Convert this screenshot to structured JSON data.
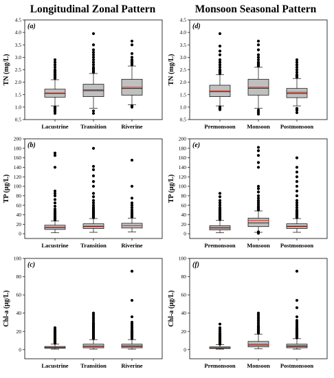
{
  "columns": {
    "left_title": "Longitudinal Zonal Pattern",
    "right_title": "Monsoon Seasonal Pattern"
  },
  "chart_data": [
    {
      "type": "box",
      "panel_label": "(a)",
      "ylabel": "TN (mg/L)",
      "ylim": [
        0.5,
        4.5
      ],
      "yticks": [
        "0.5",
        "1.0",
        "1.5",
        "2.0",
        "2.5",
        "3.0",
        "3.5",
        "4.0",
        "4.5"
      ],
      "categories": [
        "Lacustrine",
        "Transition",
        "Riverine"
      ],
      "boxes": [
        {
          "whisker_low": 1.05,
          "q1": 1.4,
          "median": 1.55,
          "mean": 1.57,
          "q3": 1.72,
          "whisker_high": 2.1,
          "outliers": [
            0.75,
            0.82,
            0.88,
            0.95,
            1.0,
            2.15,
            2.2,
            2.25,
            2.3,
            2.35,
            2.4,
            2.45,
            2.5,
            2.6,
            2.7,
            2.8,
            2.9
          ]
        },
        {
          "whisker_low": 0.95,
          "q1": 1.42,
          "median": 1.66,
          "mean": 1.7,
          "q3": 1.92,
          "whisker_high": 2.35,
          "outliers": [
            0.75,
            0.85,
            2.4,
            2.45,
            2.5,
            2.55,
            2.6,
            2.7,
            2.8,
            2.9,
            3.0,
            3.1,
            3.2,
            3.3,
            3.5,
            3.95
          ]
        },
        {
          "whisker_low": 1.1,
          "q1": 1.48,
          "median": 1.75,
          "mean": 1.8,
          "q3": 2.12,
          "whisker_high": 2.65,
          "outliers": [
            1.0,
            1.05,
            2.7,
            2.75,
            2.8,
            2.85,
            2.9,
            3.0,
            3.15,
            3.5,
            3.65
          ]
        }
      ]
    },
    {
      "type": "box",
      "panel_label": "(b)",
      "ylabel": "TP (μg/L)",
      "ylim": [
        -10,
        200
      ],
      "yticks": [
        "0",
        "20",
        "40",
        "60",
        "80",
        "100",
        "120",
        "140",
        "160",
        "180",
        "200"
      ],
      "categories": [
        "Lacustrine",
        "Transition",
        "Riverine"
      ],
      "boxes": [
        {
          "whisker_low": 2,
          "q1": 9,
          "median": 13,
          "mean": 14,
          "q3": 18,
          "whisker_high": 27,
          "outliers": [
            29,
            31,
            33,
            35,
            37,
            40,
            42,
            45,
            48,
            52,
            58,
            65,
            72,
            80,
            85,
            90,
            140,
            165,
            170
          ]
        },
        {
          "whisker_low": 3,
          "q1": 11,
          "median": 15,
          "mean": 16,
          "q3": 21,
          "whisker_high": 32,
          "outliers": [
            34,
            36,
            38,
            40,
            42,
            44,
            46,
            48,
            50,
            53,
            56,
            60,
            65,
            70,
            78,
            85,
            100,
            110,
            122,
            135,
            142,
            180
          ]
        },
        {
          "whisker_low": 4,
          "q1": 12,
          "median": 17,
          "mean": 17,
          "q3": 22,
          "whisker_high": 33,
          "outliers": [
            35,
            37,
            40,
            43,
            46,
            50,
            55,
            60,
            65,
            75,
            100,
            155
          ]
        }
      ]
    },
    {
      "type": "box",
      "panel_label": "(c)",
      "ylabel": "Chl-a (μg/L)",
      "ylim": [
        -10,
        100
      ],
      "yticks": [
        "0",
        "20",
        "40",
        "60",
        "80",
        "100"
      ],
      "categories": [
        "Lacustrine",
        "Transition",
        "Riverine"
      ],
      "boxes": [
        {
          "whisker_low": 0.5,
          "q1": 1.5,
          "median": 2.2,
          "mean": 2.5,
          "q3": 3.5,
          "whisker_high": 6,
          "outliers": [
            7,
            8,
            9,
            10,
            11,
            12,
            13,
            14,
            15,
            16,
            17,
            18,
            19,
            20,
            21,
            22,
            24
          ]
        },
        {
          "whisker_low": 0.5,
          "q1": 2,
          "median": 3.5,
          "mean": 4,
          "q3": 6,
          "whisker_high": 11,
          "outliers": [
            12,
            13,
            14,
            15,
            16,
            17,
            18,
            19,
            20,
            21,
            22,
            23,
            24,
            25,
            26,
            27,
            28,
            29,
            30,
            32,
            34,
            36,
            38,
            40
          ]
        },
        {
          "whisker_low": 0.5,
          "q1": 2,
          "median": 3.5,
          "mean": 4.2,
          "q3": 6,
          "whisker_high": 11,
          "outliers": [
            12,
            13,
            14,
            15,
            16,
            17,
            18,
            19,
            20,
            21,
            22,
            24,
            26,
            28,
            30,
            36,
            54,
            86
          ]
        }
      ]
    },
    {
      "type": "box",
      "panel_label": "(d)",
      "ylabel": "TN (mg/L)",
      "ylim": [
        0.5,
        4.5
      ],
      "yticks": [
        "0.5",
        "1.0",
        "1.5",
        "2.0",
        "2.5",
        "3.0",
        "3.5",
        "4.0",
        "4.5"
      ],
      "categories": [
        "Premonsoon",
        "Monsoon",
        "Postmonsoon"
      ],
      "boxes": [
        {
          "whisker_low": 1.05,
          "q1": 1.42,
          "median": 1.62,
          "mean": 1.66,
          "q3": 1.88,
          "whisker_high": 2.3,
          "outliers": [
            0.9,
            0.95,
            1.0,
            2.35,
            2.4,
            2.45,
            2.5,
            2.6,
            2.7,
            2.8,
            2.9,
            3.1,
            3.25,
            3.45,
            3.95
          ]
        },
        {
          "whisker_low": 0.95,
          "q1": 1.48,
          "median": 1.76,
          "mean": 1.8,
          "q3": 2.12,
          "whisker_high": 2.6,
          "outliers": [
            0.72,
            0.8,
            0.88,
            2.65,
            2.7,
            2.75,
            2.8,
            2.9,
            3.0,
            3.1,
            3.3,
            3.5,
            3.65
          ]
        },
        {
          "whisker_low": 1.05,
          "q1": 1.38,
          "median": 1.55,
          "mean": 1.6,
          "q3": 1.75,
          "whisker_high": 2.15,
          "outliers": [
            0.78,
            0.88,
            0.95,
            2.2,
            2.25,
            2.3,
            2.4,
            2.5,
            2.6,
            2.7,
            2.8,
            2.9
          ]
        }
      ]
    },
    {
      "type": "box",
      "panel_label": "(e)",
      "ylabel": "TP (μg/L)",
      "ylim": [
        -10,
        200
      ],
      "yticks": [
        "0",
        "20",
        "40",
        "60",
        "80",
        "100",
        "120",
        "140",
        "160",
        "180",
        "200"
      ],
      "categories": [
        "Premonsoon",
        "Monsoon",
        "Postmonsoon"
      ],
      "boxes": [
        {
          "whisker_low": 2,
          "q1": 8,
          "median": 12,
          "mean": 13,
          "q3": 17,
          "whisker_high": 28,
          "outliers": [
            30,
            32,
            34,
            36,
            38,
            40,
            42,
            44,
            46,
            48,
            50,
            52,
            55,
            60,
            65,
            70,
            78,
            85
          ]
        },
        {
          "whisker_low": 3,
          "q1": 15,
          "median": 23,
          "mean": 28,
          "q3": 33,
          "whisker_high": 48,
          "outliers": [
            1,
            2,
            4,
            50,
            52,
            55,
            58,
            62,
            66,
            70,
            75,
            80,
            88,
            95,
            100,
            140,
            150,
            165,
            175,
            182
          ]
        },
        {
          "whisker_low": 3,
          "q1": 11,
          "median": 15,
          "mean": 16,
          "q3": 21,
          "whisker_high": 32,
          "outliers": [
            34,
            36,
            38,
            40,
            42,
            44,
            46,
            48,
            50,
            55,
            60,
            65,
            70,
            80,
            90,
            100,
            110,
            120,
            130,
            140,
            160
          ]
        }
      ]
    },
    {
      "type": "box",
      "panel_label": "(f)",
      "ylabel": "Chl-a (μg/L)",
      "ylim": [
        -10,
        100
      ],
      "yticks": [
        "0",
        "20",
        "40",
        "60",
        "80",
        "100"
      ],
      "categories": [
        "Premonsoon",
        "Monsoon",
        "Postmonsoon"
      ],
      "boxes": [
        {
          "whisker_low": 0.5,
          "q1": 1.2,
          "median": 2,
          "mean": 2.3,
          "q3": 3,
          "whisker_high": 5.5,
          "outliers": [
            6,
            7,
            8,
            9,
            10,
            11,
            12,
            13,
            14,
            15,
            16,
            17,
            18,
            20,
            22,
            24,
            28
          ]
        },
        {
          "whisker_low": 1,
          "q1": 3,
          "median": 5,
          "mean": 6,
          "q3": 9,
          "whisker_high": 17,
          "outliers": [
            18,
            19,
            20,
            21,
            22,
            23,
            24,
            25,
            26,
            28,
            30,
            32,
            34,
            36,
            38,
            40
          ]
        },
        {
          "whisker_low": 0.5,
          "q1": 2,
          "median": 3.5,
          "mean": 4.3,
          "q3": 6,
          "whisker_high": 12,
          "outliers": [
            13,
            14,
            15,
            16,
            17,
            18,
            19,
            20,
            21,
            22,
            23,
            24,
            26,
            28,
            30,
            32,
            36,
            46,
            54,
            86
          ]
        }
      ]
    }
  ]
}
